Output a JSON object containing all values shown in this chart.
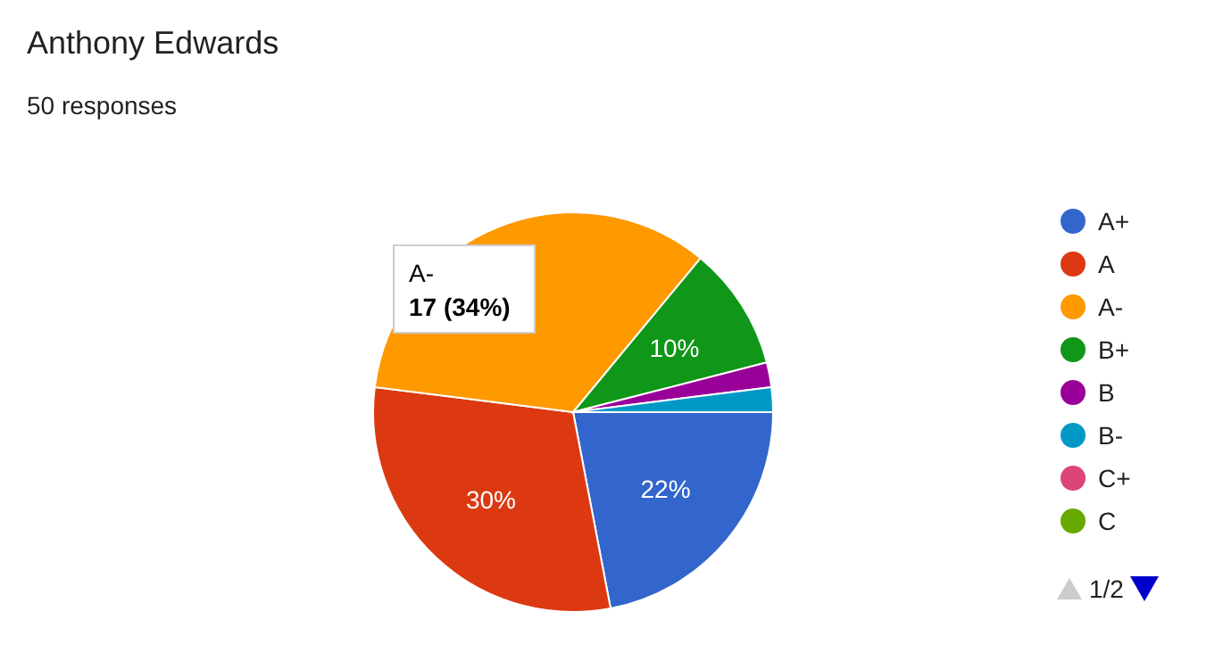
{
  "chart_data": {
    "type": "pie",
    "title": "Anthony Edwards",
    "subtitle": "50 responses",
    "categories": [
      "A+",
      "A",
      "A-",
      "B+",
      "B",
      "B-",
      "C+",
      "C"
    ],
    "values": [
      22,
      30,
      34,
      10,
      2,
      2,
      0,
      0
    ],
    "colors": [
      "#3366cc",
      "#dc3912",
      "#ff9900",
      "#109618",
      "#990099",
      "#0099c6",
      "#dd4477",
      "#66aa00"
    ],
    "value_labels": [
      "22%",
      "30%",
      null,
      "10%",
      null,
      null,
      null,
      null
    ],
    "legend": "right",
    "annotations": [
      "A-",
      "17 (34%)",
      "1/2"
    ]
  }
}
